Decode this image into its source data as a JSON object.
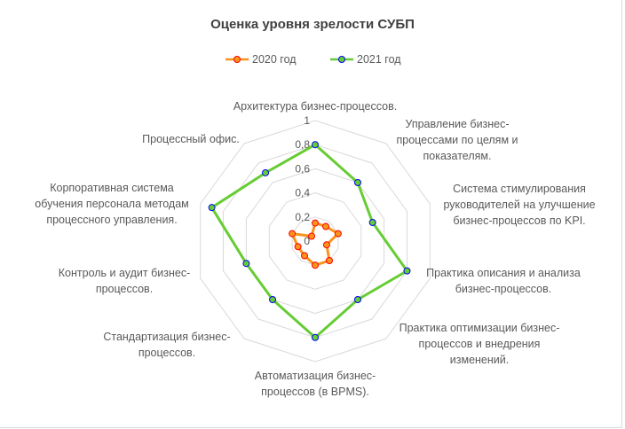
{
  "chart_data": {
    "type": "radar",
    "title": "Оценка уровня зрелости СУБП",
    "categories": [
      "Архитектура бизнес-процессов.",
      "Управление бизнес-\nпроцессами по целям и\nпоказателям.",
      "Система стимулирования\nруководителей на улучшение\nбизнес-процессов по KPI.",
      "Практика описания и анализа\nбизнес-процессов.",
      "Практика оптимизации бизнес-\nпроцессов и внедрения\nизменений.",
      "Автоматизация бизнес-\nпроцессов (в BPMS).",
      "Стандартизация бизнес-\nпроцессов.",
      "Контроль и аудит бизнес-\nпроцессов.",
      "Корпоративная система\nобучения персонала методам\nпроцессного управления.",
      "Процессный офис."
    ],
    "series": [
      {
        "name": "2020 год",
        "color": "#F7941D",
        "marker_color": "#FF0000",
        "values": [
          0.15,
          0.15,
          0.2,
          0.1,
          0.2,
          0.2,
          0.15,
          0.15,
          0.2,
          0.05
        ]
      },
      {
        "name": "2021 год",
        "color": "#66CC33",
        "marker_color": "#0000FF",
        "values": [
          0.8,
          0.6,
          0.5,
          0.8,
          0.6,
          0.8,
          0.6,
          0.6,
          0.9,
          0.7
        ]
      }
    ],
    "rlim": [
      0,
      1
    ],
    "ticks": [
      "0",
      "0,2",
      "0,4",
      "0,6",
      "0,8",
      "1"
    ],
    "grid": true,
    "legend": "top"
  }
}
